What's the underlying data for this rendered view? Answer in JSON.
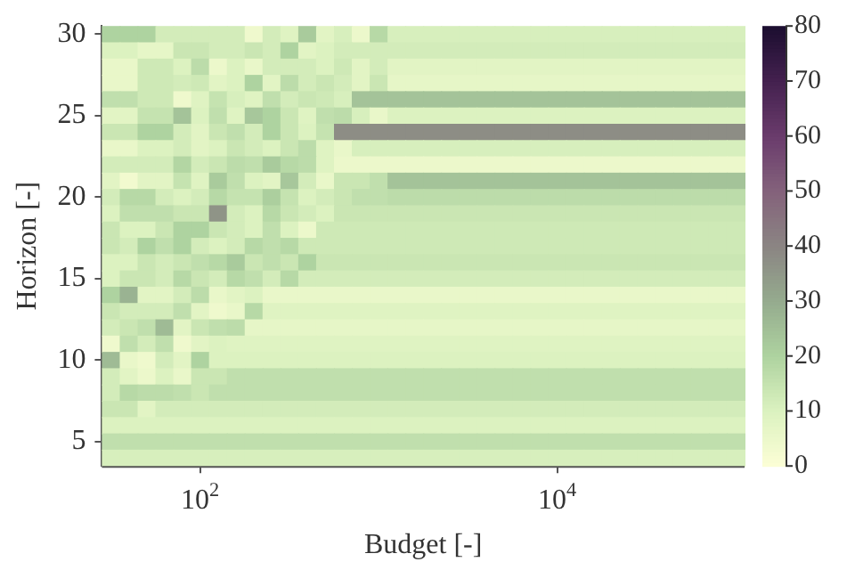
{
  "chart_data": {
    "type": "heatmap",
    "xlabel": "Budget [-]",
    "ylabel": "Horizon [-]",
    "categories": [
      null,
      null,
      null,
      null,
      null,
      "10$^{2}$",
      null,
      null,
      null,
      null,
      null,
      null,
      null,
      null,
      null,
      null,
      null,
      null,
      null,
      null,
      null,
      null,
      null,
      null,
      null,
      "10$^{4}$",
      null,
      null,
      null,
      null,
      null,
      null,
      null,
      null,
      null,
      null
    ],
    "y_categories": [
      "30",
      null,
      null,
      null,
      null,
      "25",
      null,
      null,
      null,
      null,
      "20",
      null,
      null,
      null,
      null,
      "15",
      null,
      null,
      null,
      null,
      "10",
      null,
      null,
      null,
      null,
      "5",
      null
    ],
    "clim": [
      0,
      80
    ],
    "cticks": [
      0,
      10,
      20,
      30,
      40,
      50,
      60,
      70,
      80
    ],
    "cells": [
      [
        20,
        20,
        20,
        12,
        12,
        12,
        12,
        12,
        4,
        12,
        9,
        22,
        8,
        11,
        5,
        18,
        11,
        11,
        11,
        11,
        11,
        11,
        11,
        11,
        11,
        11,
        11,
        11,
        11,
        11,
        11,
        11,
        11,
        11,
        11,
        11
      ],
      [
        10,
        10,
        7,
        7,
        14,
        14,
        12,
        12,
        14,
        12,
        20,
        8,
        10,
        12,
        12,
        12,
        12,
        12,
        12,
        12,
        12,
        12,
        12,
        12,
        12,
        12,
        12,
        12,
        12,
        12,
        12,
        12,
        12,
        12,
        12,
        12
      ],
      [
        6,
        6,
        13,
        13,
        10,
        17,
        5,
        10,
        6,
        12,
        12,
        12,
        10,
        13,
        8,
        12,
        8,
        8,
        8,
        8,
        8,
        8,
        8,
        8,
        8,
        8,
        8,
        8,
        8,
        8,
        8,
        8,
        8,
        8,
        8,
        8
      ],
      [
        6,
        6,
        13,
        13,
        12,
        13,
        8,
        10,
        20,
        8,
        17,
        12,
        14,
        12,
        8,
        14,
        7,
        7,
        7,
        7,
        7,
        7,
        7,
        7,
        7,
        7,
        7,
        7,
        7,
        7,
        7,
        7,
        7,
        7,
        7,
        7
      ],
      [
        16,
        16,
        13,
        13,
        4,
        9,
        15,
        11,
        9,
        16,
        12,
        14,
        13,
        11,
        24,
        24,
        24,
        24,
        24,
        24,
        24,
        24,
        24,
        24,
        24,
        24,
        24,
        24,
        24,
        24,
        24,
        24,
        24,
        24,
        24,
        24
      ],
      [
        8,
        8,
        15,
        15,
        24,
        10,
        16,
        9,
        23,
        20,
        14,
        9,
        16,
        17,
        11,
        6,
        10,
        10,
        10,
        10,
        10,
        10,
        10,
        10,
        10,
        10,
        10,
        10,
        10,
        10,
        10,
        10,
        10,
        10,
        10,
        10
      ],
      [
        14,
        14,
        20,
        20,
        12,
        8,
        14,
        16,
        12,
        20,
        14,
        10,
        15,
        38,
        38,
        38,
        38,
        38,
        38,
        38,
        38,
        38,
        38,
        38,
        38,
        38,
        38,
        38,
        38,
        38,
        38,
        38,
        38,
        38,
        38,
        38
      ],
      [
        6,
        6,
        10,
        10,
        12,
        8,
        10,
        14,
        12,
        10,
        14,
        17,
        9,
        6,
        11,
        11,
        11,
        11,
        11,
        11,
        11,
        11,
        11,
        11,
        11,
        11,
        11,
        11,
        11,
        11,
        11,
        11,
        11,
        11,
        11,
        11
      ],
      [
        12,
        12,
        12,
        12,
        19,
        12,
        14,
        17,
        16,
        22,
        18,
        17,
        9,
        5,
        5,
        5,
        5,
        5,
        5,
        5,
        5,
        5,
        5,
        5,
        5,
        5,
        5,
        5,
        5,
        5,
        5,
        5,
        5,
        5,
        5,
        5
      ],
      [
        8,
        3,
        8,
        8,
        15,
        9,
        22,
        16,
        10,
        8,
        23,
        12,
        6,
        14,
        14,
        16,
        24,
        24,
        24,
        24,
        24,
        24,
        24,
        24,
        24,
        24,
        24,
        24,
        24,
        24,
        24,
        24,
        24,
        24,
        24,
        24
      ],
      [
        12,
        18,
        18,
        12,
        10,
        12,
        18,
        15,
        15,
        21,
        15,
        10,
        12,
        14,
        16,
        16,
        17,
        17,
        17,
        17,
        17,
        17,
        17,
        17,
        17,
        17,
        17,
        17,
        17,
        17,
        17,
        17,
        17,
        17,
        17,
        17
      ],
      [
        10,
        16,
        16,
        16,
        14,
        14,
        36,
        12,
        10,
        18,
        14,
        12,
        10,
        14,
        14,
        14,
        14,
        14,
        14,
        14,
        14,
        14,
        14,
        14,
        14,
        14,
        14,
        14,
        14,
        14,
        14,
        14,
        14,
        14,
        14,
        14
      ],
      [
        14,
        10,
        10,
        14,
        20,
        20,
        14,
        12,
        10,
        16,
        10,
        5,
        13,
        13,
        13,
        13,
        13,
        13,
        13,
        13,
        13,
        13,
        13,
        13,
        13,
        13,
        13,
        13,
        13,
        13,
        13,
        13,
        13,
        13,
        13,
        13
      ],
      [
        14,
        12,
        20,
        16,
        20,
        12,
        10,
        12,
        18,
        16,
        18,
        13,
        13,
        13,
        13,
        13,
        13,
        13,
        13,
        13,
        13,
        13,
        13,
        13,
        13,
        13,
        13,
        13,
        13,
        13,
        13,
        13,
        13,
        13,
        13,
        13
      ],
      [
        10,
        10,
        14,
        12,
        14,
        16,
        18,
        22,
        14,
        16,
        14,
        20,
        14,
        14,
        14,
        14,
        14,
        14,
        14,
        14,
        14,
        14,
        14,
        14,
        14,
        14,
        14,
        14,
        14,
        14,
        14,
        14,
        14,
        14,
        14,
        14
      ],
      [
        10,
        14,
        14,
        12,
        18,
        14,
        12,
        18,
        16,
        12,
        18,
        12,
        12,
        12,
        12,
        12,
        12,
        12,
        12,
        12,
        12,
        12,
        12,
        12,
        12,
        12,
        12,
        12,
        12,
        12,
        12,
        12,
        12,
        12,
        12,
        12
      ],
      [
        20,
        28,
        8,
        8,
        12,
        17,
        6,
        8,
        10,
        6,
        6,
        6,
        6,
        6,
        6,
        6,
        6,
        6,
        6,
        6,
        6,
        6,
        6,
        6,
        6,
        6,
        6,
        6,
        6,
        6,
        6,
        6,
        6,
        6,
        6,
        6
      ],
      [
        14,
        12,
        12,
        12,
        16,
        8,
        4,
        6,
        18,
        9,
        9,
        9,
        9,
        9,
        9,
        9,
        9,
        9,
        9,
        9,
        9,
        9,
        9,
        9,
        9,
        9,
        9,
        9,
        9,
        9,
        9,
        9,
        9,
        9,
        9,
        9
      ],
      [
        12,
        14,
        16,
        26,
        8,
        14,
        16,
        17,
        7,
        7,
        7,
        7,
        7,
        7,
        7,
        7,
        7,
        7,
        7,
        7,
        7,
        7,
        7,
        7,
        7,
        7,
        7,
        7,
        7,
        7,
        7,
        7,
        7,
        7,
        7,
        7
      ],
      [
        4,
        16,
        12,
        16,
        4,
        8,
        10,
        9,
        9,
        9,
        9,
        9,
        9,
        9,
        9,
        9,
        9,
        9,
        9,
        9,
        9,
        9,
        9,
        9,
        9,
        9,
        9,
        9,
        9,
        9,
        9,
        9,
        9,
        9,
        9,
        9
      ],
      [
        26,
        6,
        4,
        12,
        8,
        20,
        10,
        10,
        10,
        10,
        10,
        10,
        10,
        10,
        10,
        10,
        10,
        10,
        10,
        10,
        10,
        10,
        10,
        10,
        10,
        10,
        10,
        10,
        10,
        10,
        10,
        10,
        10,
        10,
        10,
        10
      ],
      [
        12,
        8,
        5,
        10,
        6,
        14,
        14,
        16,
        16,
        16,
        16,
        16,
        16,
        16,
        16,
        16,
        16,
        16,
        16,
        16,
        16,
        16,
        16,
        16,
        16,
        16,
        16,
        16,
        16,
        16,
        16,
        16,
        16,
        16,
        16,
        16
      ],
      [
        12,
        18,
        17,
        17,
        16,
        14,
        16,
        16,
        16,
        16,
        16,
        16,
        16,
        16,
        16,
        16,
        16,
        16,
        16,
        16,
        16,
        16,
        16,
        16,
        16,
        16,
        16,
        16,
        16,
        16,
        16,
        16,
        16,
        16,
        16,
        16
      ],
      [
        14,
        14,
        8,
        12,
        12,
        12,
        12,
        12,
        12,
        12,
        12,
        12,
        12,
        12,
        12,
        12,
        12,
        12,
        12,
        12,
        12,
        12,
        12,
        12,
        12,
        12,
        12,
        12,
        12,
        12,
        12,
        12,
        12,
        12,
        12,
        12
      ],
      [
        10,
        10,
        10,
        10,
        10,
        10,
        10,
        10,
        10,
        10,
        10,
        10,
        10,
        10,
        10,
        10,
        10,
        10,
        10,
        10,
        10,
        10,
        10,
        10,
        10,
        10,
        10,
        10,
        10,
        10,
        10,
        10,
        10,
        10,
        10,
        10
      ],
      [
        16,
        16,
        16,
        16,
        16,
        16,
        16,
        16,
        16,
        16,
        16,
        16,
        16,
        16,
        16,
        16,
        16,
        16,
        16,
        16,
        16,
        16,
        16,
        16,
        16,
        16,
        16,
        16,
        16,
        16,
        16,
        16,
        16,
        16,
        16,
        16
      ],
      [
        11,
        11,
        11,
        11,
        11,
        11,
        11,
        11,
        11,
        11,
        11,
        11,
        11,
        11,
        11,
        11,
        11,
        11,
        11,
        11,
        11,
        11,
        11,
        11,
        11,
        11,
        11,
        11,
        11,
        11,
        11,
        11,
        11,
        11,
        11,
        11
      ]
    ]
  }
}
